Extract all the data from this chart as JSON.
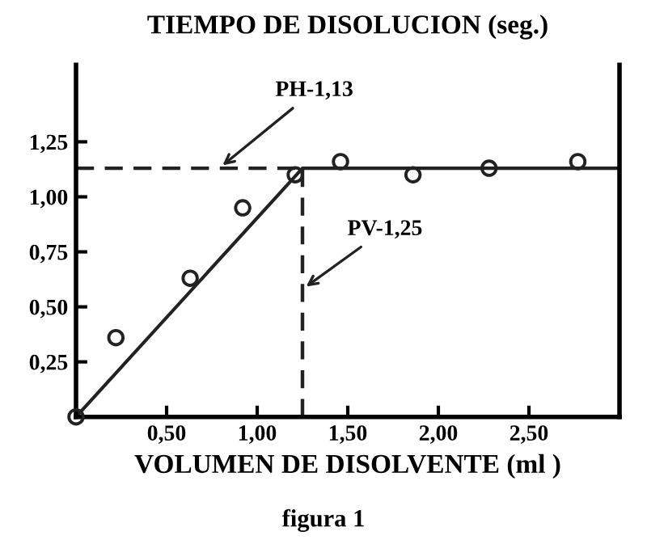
{
  "chart_data": {
    "type": "scatter",
    "ylabel": "TIEMPO DE DISOLUCION (seg.)",
    "xlabel": "VOLUMEN DE DISOLVENTE (ml )",
    "annotations": [
      {
        "text": "PH-1,13",
        "x": 0.79,
        "y": 1.13
      },
      {
        "text": "PV-1,25",
        "x": 1.25,
        "y": 0.58
      },
      "figura 1"
    ],
    "series": [
      {
        "color": "#222222",
        "marker": "circle",
        "x": [
          0,
          0.22,
          0.63,
          0.92,
          1.21,
          1.46,
          1.86,
          2.28,
          2.77
        ],
        "values": [
          0,
          0.36,
          0.63,
          0.95,
          1.1,
          1.16,
          1.1,
          1.13,
          1.16
        ]
      },
      {
        "type": "line",
        "color": "#222222",
        "line_style": "solid",
        "x": [
          0,
          1.25,
          3.0
        ],
        "values": [
          0,
          1.13,
          1.13
        ]
      }
    ],
    "ref_lines": [
      {
        "axis": "y",
        "value": 1.13,
        "color": "#222222",
        "line_style": "dashed"
      },
      {
        "axis": "x",
        "value": 1.25,
        "color": "#222222",
        "line_style": "dashed"
      }
    ],
    "xlim": [
      0,
      3.0
    ],
    "ylim": [
      0,
      1.6
    ],
    "xticks": [
      {
        "value": 0.5,
        "label": "0,50"
      },
      {
        "value": 1.0,
        "label": "1,00"
      },
      {
        "value": 1.5,
        "label": "1,50"
      },
      {
        "value": 2.0,
        "label": "2,00"
      },
      {
        "value": 2.5,
        "label": "2,50"
      }
    ],
    "yticks": [
      {
        "value": 0.25,
        "label": "0,25"
      },
      {
        "value": 0.5,
        "label": "0,50"
      },
      {
        "value": 0.75,
        "label": "0,75"
      },
      {
        "value": 1.0,
        "label": "1,00"
      },
      {
        "value": 1.25,
        "label": "1,25"
      }
    ],
    "grid": false,
    "legend": false
  }
}
